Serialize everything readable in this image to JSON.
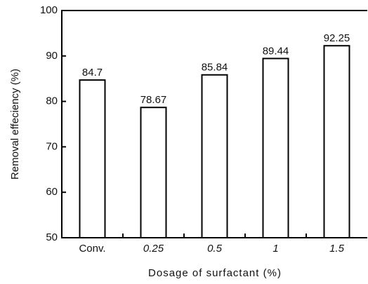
{
  "chart_data": {
    "type": "bar",
    "x_label": "Dosage of surfactant (%)",
    "y_label": "Removal effeciency (%)",
    "categories": [
      "Conv.",
      "0.25",
      "0.5",
      "1",
      "1.5"
    ],
    "values": [
      84.7,
      78.67,
      85.84,
      89.44,
      92.25
    ],
    "color": "#ffffff",
    "ylim": [
      50,
      100
    ],
    "yticks": [
      50,
      60,
      70,
      80,
      90,
      100
    ],
    "grid": false
  }
}
